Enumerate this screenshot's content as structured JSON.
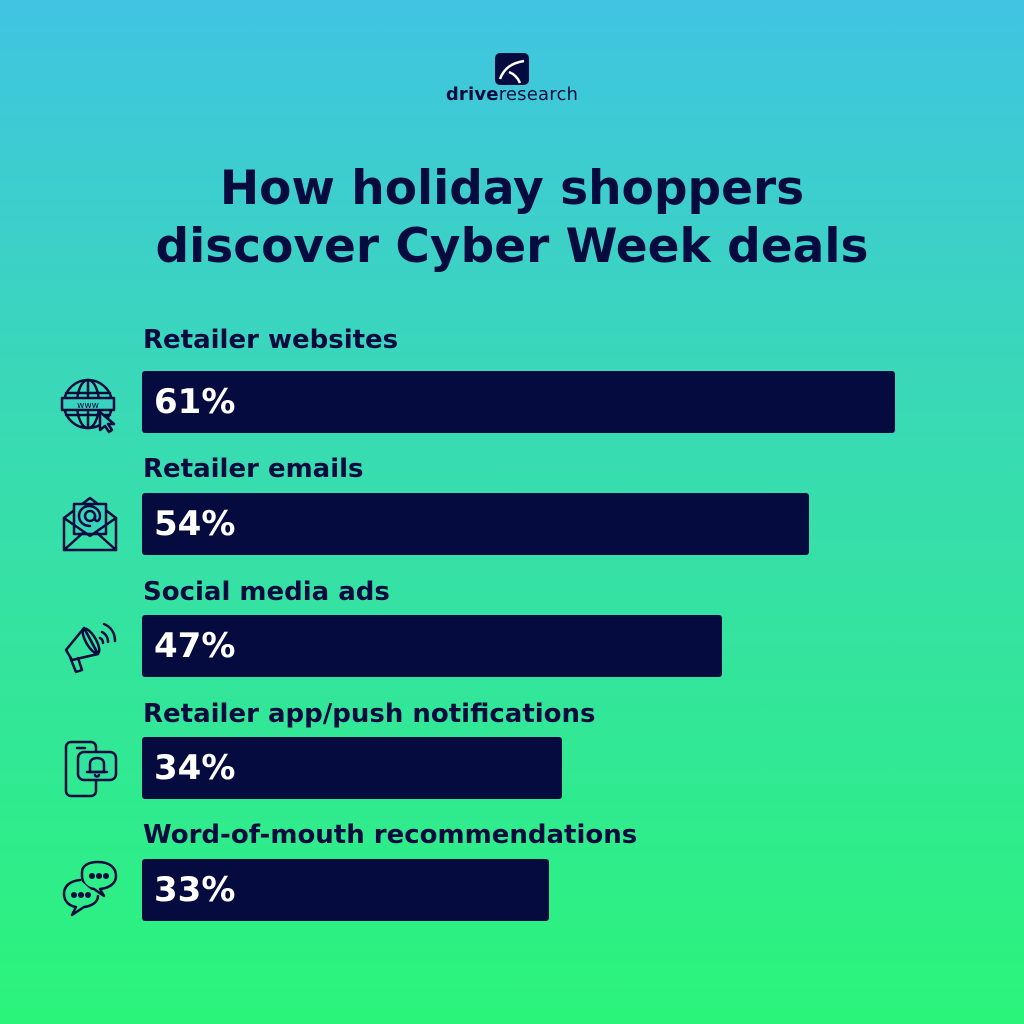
{
  "brand": {
    "name_bold": "drive",
    "name_light": "research"
  },
  "title": {
    "line1": "How holiday shoppers",
    "line2": "discover Cyber Week deals"
  },
  "colors": {
    "bar": "#060b3f",
    "text": "#060b3f",
    "value_text": "#ffffff",
    "bg_top": "#40c4e2",
    "bg_bottom": "#2bf47a"
  },
  "chart_data": {
    "type": "bar",
    "orientation": "horizontal",
    "title": "How holiday shoppers discover Cyber Week deals",
    "xlim": [
      0,
      61
    ],
    "categories": [
      "Retailer websites",
      "Retailer emails",
      "Social media ads",
      "Retailer app/push notifications",
      "Word-of-mouth recommendations"
    ],
    "values": [
      61,
      54,
      47,
      34,
      33
    ],
    "value_labels": [
      "61%",
      "54%",
      "47%",
      "34%",
      "33%"
    ],
    "icons": [
      "globe-www-icon",
      "email-envelope-icon",
      "megaphone-icon",
      "phone-notification-icon",
      "chat-bubbles-icon"
    ]
  }
}
